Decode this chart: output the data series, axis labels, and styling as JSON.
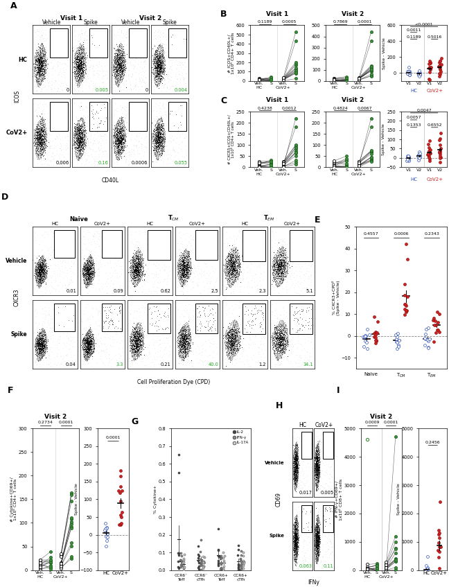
{
  "panel_A": {
    "label": "A",
    "col_headers": [
      "Vehicle",
      "Spike",
      "Vehicle",
      "Spike"
    ],
    "visit_headers": [
      "Visit 1",
      "Visit 2"
    ],
    "row_headers": [
      "HC",
      "CoV2+"
    ],
    "xlabel": "CD40L",
    "ylabel": "ICOS",
    "gate_values": [
      [
        "0",
        "0.005",
        "0",
        "0.004"
      ],
      [
        "0.006",
        "0.16",
        "0.0006",
        "0.055"
      ]
    ],
    "gate_green": [
      [
        false,
        true,
        false,
        true
      ],
      [
        false,
        true,
        false,
        true
      ]
    ]
  },
  "panel_B": {
    "label": "B",
    "ylabel_left": "# ICOS+CD40L+/\n1x10⁶ CD4+ T cells",
    "ylabel_right": "Spike - Vehicle",
    "pval_v1": [
      "0.1189",
      "0.0005"
    ],
    "pval_v2": [
      "0.7869",
      "0.0001"
    ],
    "pval_right_top": "<0.0001",
    "pval_right_mid": "0.0011",
    "pval_right_hc": "0.1189",
    "pval_right_cov": "0.5016",
    "ylim_v1": [
      0,
      600
    ],
    "ylim_v2": [
      0,
      500
    ],
    "ylim_right": [
      -100,
      600
    ]
  },
  "panel_C": {
    "label": "C",
    "ylabel_left": "# CXCR5+ICOS+CD40L+/\n1x10⁶ CD4+ T cells",
    "ylabel_right": "Spike - Vehicle",
    "pval_v1": [
      "0.4238",
      "0.0012"
    ],
    "pval_v2": [
      "0.4824",
      "0.0067"
    ],
    "pval_right_top": "0.0047",
    "pval_right_mid": "0.0057",
    "pval_right_hc": "0.1353",
    "pval_right_cov": "0.6552",
    "ylim_v1": [
      0,
      250
    ],
    "ylim_v2": [
      0,
      250
    ],
    "ylim_right": [
      -50,
      250
    ]
  },
  "panel_D": {
    "label": "D",
    "col_headers": [
      "HC",
      "CoV2+",
      "HC",
      "CoV2+",
      "HC",
      "CoV2+"
    ],
    "group_headers": [
      "Naive",
      "T_CM",
      "T_EM"
    ],
    "row_headers": [
      "Vehicle",
      "Spike"
    ],
    "xlabel": "Cell Proliferation Dye (CPD)",
    "ylabel": "CXCR3",
    "gate_values": [
      [
        "0.01",
        "0.09",
        "0.62",
        "2.5",
        "2.3",
        "5.1"
      ],
      [
        "0.04",
        "3.3",
        "0.21",
        "40.0",
        "1.2",
        "34.1"
      ]
    ],
    "gate_green": [
      [
        false,
        false,
        false,
        false,
        false,
        false
      ],
      [
        false,
        true,
        false,
        true,
        false,
        true
      ]
    ]
  },
  "panel_E": {
    "label": "E",
    "ylabel": "% CXCR3+CPD⁰\n(Spike - Vehicle)",
    "pvals": [
      "0.4557",
      "0.0006",
      "0.2343"
    ],
    "xlabels": [
      "Naive",
      "T_CM",
      "T_EM"
    ],
    "ylim": [
      -15,
      50
    ]
  },
  "panel_F": {
    "label": "F",
    "title": "Visit 2",
    "ylabel_left": "# Cytokine+CD69+/\n1x10⁶ CD4+ T cells",
    "ylabel_right": "Spike - Vehicle",
    "pvals": [
      "0.2734",
      "0.0001"
    ],
    "pval_right": "0.0001",
    "ylim_left": [
      0,
      300
    ],
    "ylim_right": [
      -100,
      300
    ]
  },
  "panel_G": {
    "label": "G",
    "ylabel": "% Cytokine+",
    "ylim": [
      0,
      0.8
    ],
    "xlabels": [
      "CCR6⁻\nTeff",
      "CCR6⁻\ncTfh",
      "CCR6+\nTeff",
      "CCR6+\ncTfh"
    ],
    "legend": [
      "IL-2",
      "IFN-γ",
      "IL-17A"
    ]
  },
  "panel_H": {
    "label": "H",
    "col_headers": [
      "HC",
      "CoV2+"
    ],
    "row_headers": [
      "Vehicle",
      "Spike"
    ],
    "xlabel": "IFNy",
    "ylabel": "CD69",
    "gate_values": [
      [
        "0.017",
        "0.005"
      ],
      [
        "0.063",
        "0.11"
      ]
    ],
    "gate_green": [
      [
        false,
        false
      ],
      [
        true,
        true
      ]
    ]
  },
  "panel_I": {
    "label": "I",
    "title": "Visit 2",
    "ylabel_left": "# IFN-γ+CD69+/\n1x10⁶ CD8+ T cells",
    "ylabel_right": "Spike - Vehicle",
    "pvals": [
      "0.0009",
      "0.0001"
    ],
    "pval_right": "0.2456",
    "ylim_left": [
      0,
      5000
    ],
    "ylim_right": [
      0,
      5000
    ]
  }
}
